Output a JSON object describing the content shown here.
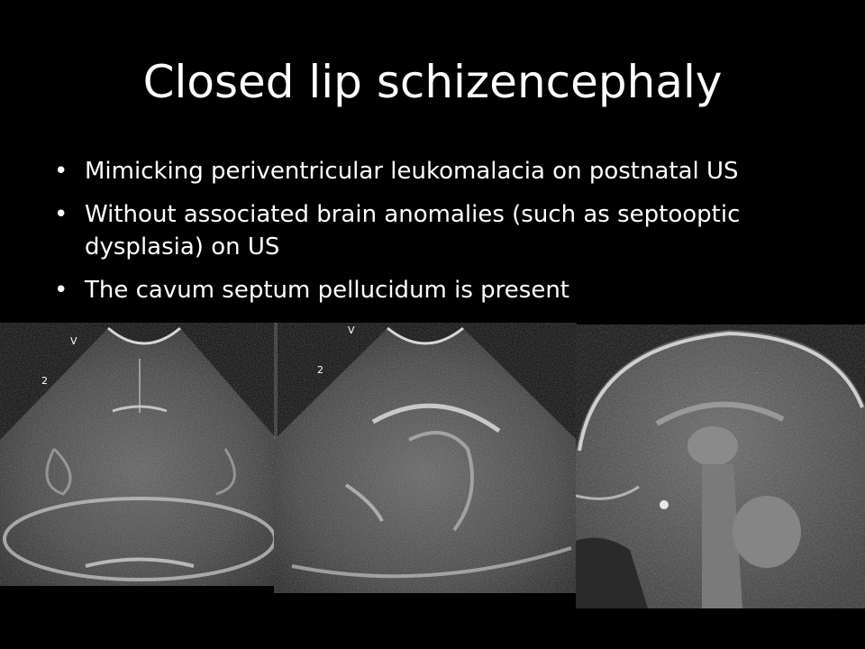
{
  "slide": {
    "title": "Closed lip schizencephaly",
    "bullets": [
      "Mimicking periventricular leukomalacia on postnatal US",
      "Without associated brain anomalies (such as septooptic dysplasia) on US",
      "The cavum septum pellucidum is present"
    ],
    "bullet_glyph": "•"
  },
  "images": {
    "us_coronal": {
      "markers": [
        "V",
        "2"
      ]
    },
    "us_sagittal": {
      "markers": [
        "V",
        "2"
      ]
    }
  }
}
